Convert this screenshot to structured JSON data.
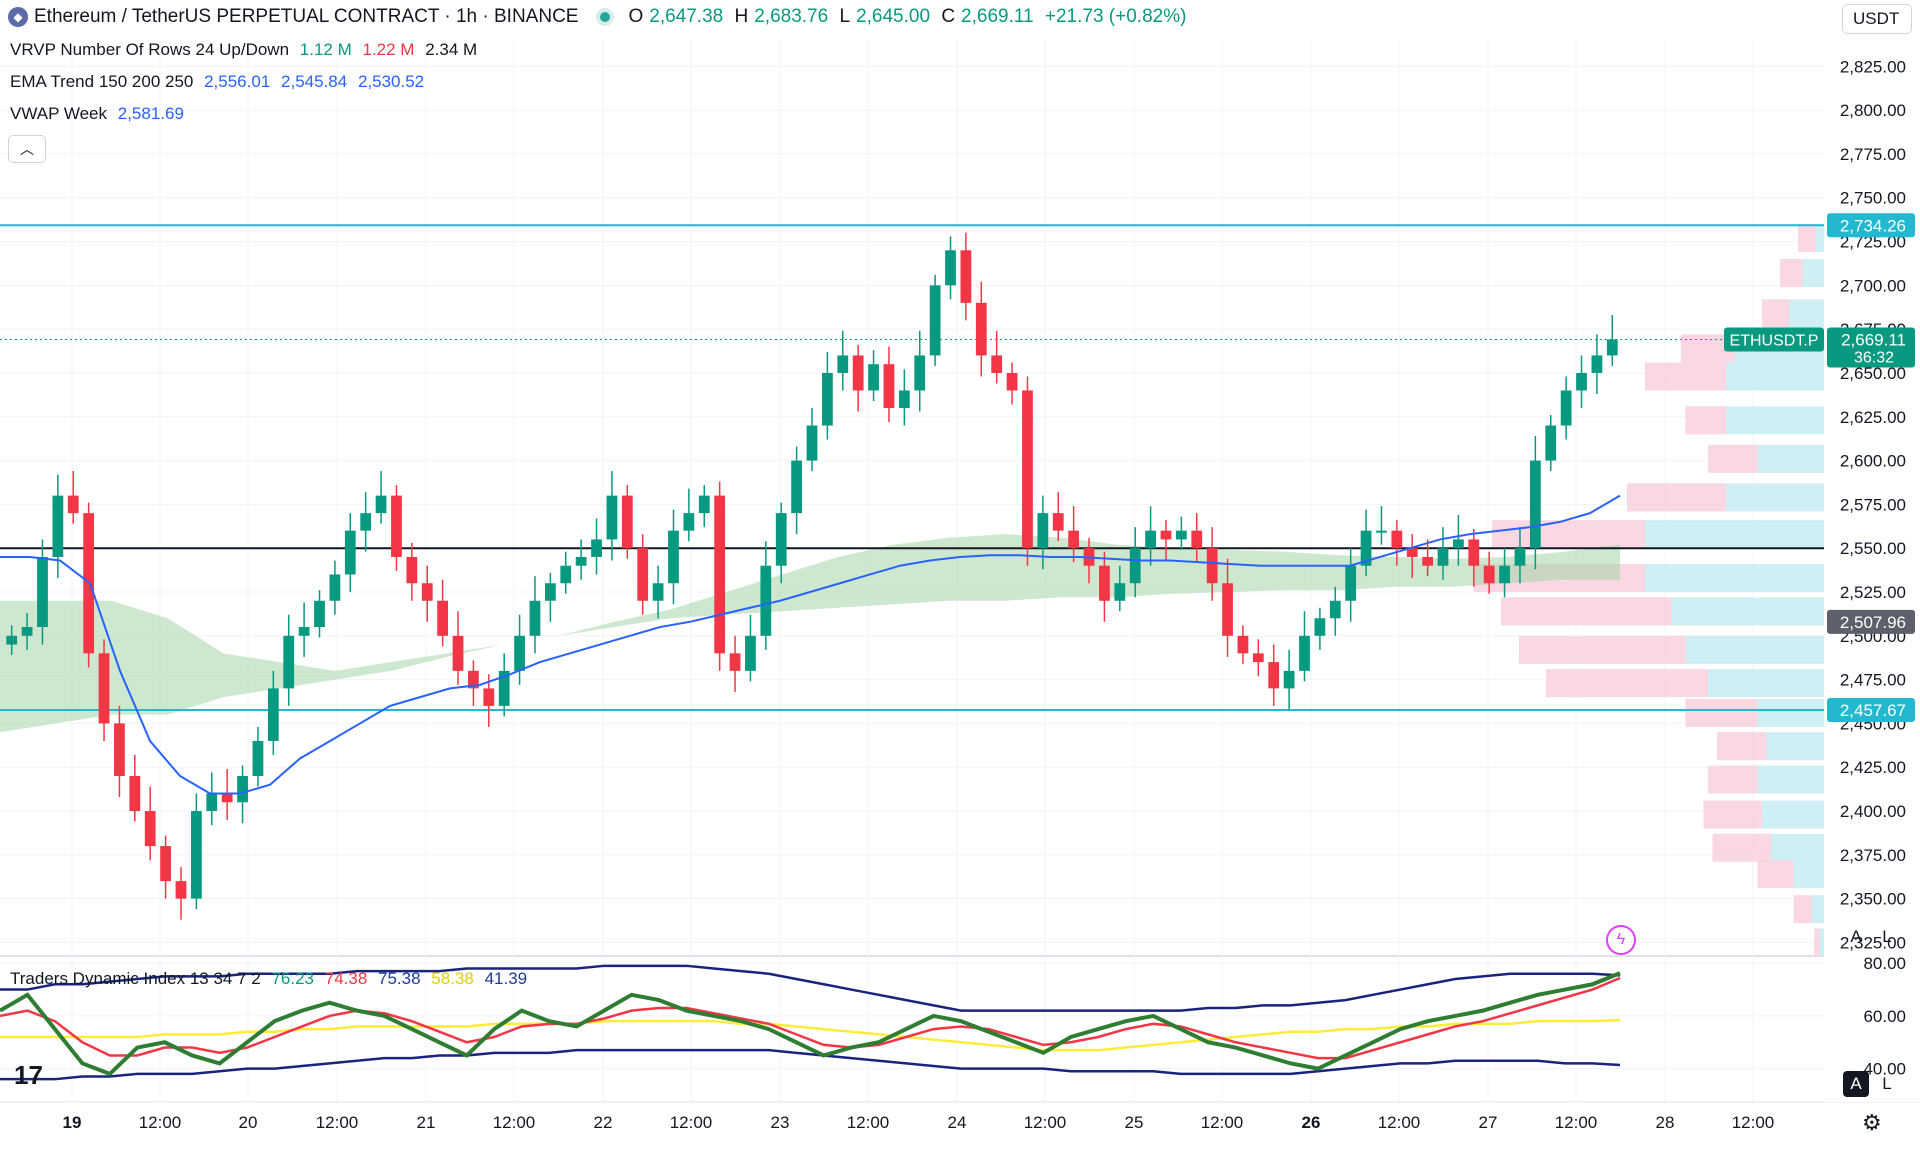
{
  "header": {
    "symbol_title": "Ethereum / TetherUS PERPETUAL CONTRACT · 1h · BINANCE",
    "o_label": "O",
    "o_value": "2,647.38",
    "h_label": "H",
    "h_value": "2,683.76",
    "l_label": "L",
    "l_value": "2,645.00",
    "c_label": "C",
    "c_value": "2,669.11",
    "change": "+21.73 (+0.82%)"
  },
  "currency_button": "USDT",
  "indicators": {
    "vrvp": {
      "name": "VRVP Number Of Rows 24 Up/Down",
      "up": "1.12 M",
      "down": "1.22 M",
      "total": "2.34 M"
    },
    "ema": {
      "name": "EMA Trend 150 200 250",
      "v1": "2,556.01",
      "v2": "2,545.84",
      "v3": "2,530.52"
    },
    "vwap": {
      "name": "VWAP Week",
      "value": "2,581.69"
    },
    "tdi": {
      "name": "Traders Dynamic Index 13 34 7 2",
      "v1": "76.23",
      "v2": "74.38",
      "v3": "75.38",
      "v4": "58.38",
      "v5": "41.39"
    }
  },
  "price_scale": {
    "ticks": [
      "2,825.00",
      "2,800.00",
      "2,775.00",
      "2,750.00",
      "2,725.00",
      "2,700.00",
      "2,675.00",
      "2,650.00",
      "2,625.00",
      "2,600.00",
      "2,575.00",
      "2,550.00",
      "2,525.00",
      "2,500.00",
      "2,475.00",
      "2,450.00",
      "2,425.00",
      "2,400.00",
      "2,375.00",
      "2,350.00",
      "2,325.00"
    ],
    "tick_values": [
      2825,
      2800,
      2775,
      2750,
      2725,
      2700,
      2675,
      2650,
      2625,
      2600,
      2575,
      2550,
      2525,
      2500,
      2475,
      2450,
      2425,
      2400,
      2375,
      2350,
      2325
    ],
    "labels": [
      {
        "text": "2,734.26",
        "value": 2734.26,
        "color": "#22b8cf"
      },
      {
        "text": "2,669.11",
        "sub": "36:32",
        "value": 2669.11,
        "color": "#089981"
      },
      {
        "text": "2,507.96",
        "value": 2507.96,
        "color": "#5d606b"
      },
      {
        "text": "2,457.67",
        "value": 2457.67,
        "color": "#22b8cf"
      }
    ],
    "symbol_tag": "ETHUSDT.P"
  },
  "osc_scale": {
    "ticks": [
      "80.00",
      "60.00",
      "40.00"
    ],
    "tick_values": [
      80,
      60,
      40
    ]
  },
  "time_axis": {
    "labels": [
      "19",
      "12:00",
      "20",
      "12:00",
      "21",
      "12:00",
      "22",
      "12:00",
      "23",
      "12:00",
      "24",
      "12:00",
      "25",
      "12:00",
      "26",
      "12:00",
      "27",
      "12:00",
      "28",
      "12:00"
    ],
    "bold": [
      true,
      false,
      false,
      false,
      false,
      false,
      false,
      false,
      false,
      false,
      false,
      false,
      false,
      false,
      true,
      false,
      false,
      false,
      false,
      false
    ]
  },
  "scale_buttons": {
    "a": "A",
    "l": "L"
  },
  "chart_data": {
    "type": "candlestick",
    "price_range": [
      2315,
      2840
    ],
    "horizontal_lines": [
      {
        "value": 2734.26,
        "color": "#22b8cf"
      },
      {
        "value": 2550.0,
        "color": "#131722"
      },
      {
        "value": 2457.67,
        "color": "#22b8cf"
      }
    ],
    "close_series": [
      2500,
      2505,
      2545,
      2580,
      2570,
      2490,
      2450,
      2420,
      2400,
      2380,
      2360,
      2350,
      2400,
      2410,
      2405,
      2420,
      2440,
      2470,
      2500,
      2505,
      2520,
      2535,
      2560,
      2570,
      2580,
      2545,
      2530,
      2520,
      2500,
      2480,
      2470,
      2460,
      2480,
      2500,
      2520,
      2530,
      2540,
      2545,
      2555,
      2580,
      2550,
      2520,
      2530,
      2560,
      2570,
      2580,
      2490,
      2480,
      2500,
      2540,
      2570,
      2600,
      2620,
      2650,
      2660,
      2640,
      2655,
      2630,
      2640,
      2660,
      2700,
      2720,
      2690,
      2660,
      2650,
      2640,
      2550,
      2570,
      2560,
      2550,
      2540,
      2520,
      2530,
      2550,
      2560,
      2555,
      2560,
      2550,
      2530,
      2500,
      2490,
      2485,
      2470,
      2480,
      2500,
      2510,
      2520,
      2540,
      2560,
      2560,
      2550,
      2545,
      2540,
      2550,
      2555,
      2540,
      2530,
      2540,
      2550,
      2600,
      2620,
      2640,
      2650,
      2660,
      2669.11
    ],
    "ema_series": [
      2545,
      2545,
      2543,
      2530,
      2480,
      2440,
      2420,
      2410,
      2410,
      2415,
      2430,
      2440,
      2450,
      2460,
      2465,
      2470,
      2472,
      2478,
      2485,
      2490,
      2495,
      2500,
      2505,
      2508,
      2512,
      2516,
      2520,
      2525,
      2530,
      2535,
      2540,
      2543,
      2545,
      2546,
      2546,
      2545,
      2545,
      2544,
      2543,
      2543,
      2542,
      2541,
      2540,
      2540,
      2540,
      2540,
      2545,
      2550,
      2555,
      2558,
      2560,
      2562,
      2565,
      2570,
      2580
    ],
    "ema_band_top": [
      2520,
      2520,
      2520,
      2510,
      2490,
      2485,
      2480,
      2485,
      2490,
      2495,
      2500,
      2508,
      2515,
      2525,
      2535,
      2545,
      2552,
      2556,
      2558,
      2556,
      2552,
      2550,
      2549,
      2548,
      2546,
      2545,
      2544,
      2545,
      2548,
      2552
    ],
    "ema_band_bottom": [
      2445,
      2450,
      2455,
      2455,
      2465,
      2470,
      2475,
      2480,
      2488,
      2495,
      2500,
      2505,
      2510,
      2512,
      2514,
      2516,
      2518,
      2520,
      2520,
      2522,
      2522,
      2524,
      2525,
      2526,
      2526,
      2528,
      2528,
      2530,
      2532,
      2532
    ],
    "volume_profile_rows": [
      {
        "price": 2727,
        "down": 20,
        "up": 10
      },
      {
        "price": 2707,
        "down": 25,
        "up": 25
      },
      {
        "price": 2684,
        "down": 30,
        "up": 40
      },
      {
        "price": 2664,
        "down": 60,
        "up": 100
      },
      {
        "price": 2648,
        "down": 90,
        "up": 110
      },
      {
        "price": 2623,
        "down": 45,
        "up": 110
      },
      {
        "price": 2601,
        "down": 55,
        "up": 75
      },
      {
        "price": 2579,
        "down": 110,
        "up": 110
      },
      {
        "price": 2558,
        "down": 170,
        "up": 200
      },
      {
        "price": 2533,
        "down": 190,
        "up": 200
      },
      {
        "price": 2514,
        "down": 190,
        "up": 170
      },
      {
        "price": 2492,
        "down": 185,
        "up": 155
      },
      {
        "price": 2473,
        "down": 180,
        "up": 130
      },
      {
        "price": 2456,
        "down": 80,
        "up": 75
      },
      {
        "price": 2437,
        "down": 55,
        "up": 65
      },
      {
        "price": 2418,
        "down": 55,
        "up": 75
      },
      {
        "price": 2398,
        "down": 65,
        "up": 70
      },
      {
        "price": 2379,
        "down": 65,
        "up": 60
      },
      {
        "price": 2364,
        "down": 40,
        "up": 35
      },
      {
        "price": 2344,
        "down": 20,
        "up": 15
      },
      {
        "price": 2325,
        "down": 6,
        "up": 6
      }
    ],
    "tdi": {
      "range": [
        30,
        85
      ],
      "green": [
        62,
        68,
        55,
        42,
        38,
        48,
        50,
        45,
        42,
        50,
        58,
        62,
        65,
        62,
        60,
        55,
        50,
        45,
        55,
        62,
        58,
        56,
        62,
        68,
        66,
        62,
        60,
        58,
        55,
        50,
        45,
        48,
        50,
        55,
        60,
        58,
        54,
        50,
        46,
        52,
        55,
        58,
        60,
        55,
        50,
        48,
        45,
        42,
        40,
        45,
        50,
        55,
        58,
        60,
        62,
        65,
        68,
        70,
        72,
        76.23
      ],
      "red": [
        60,
        62,
        58,
        50,
        45,
        45,
        48,
        48,
        46,
        48,
        52,
        56,
        60,
        62,
        61,
        58,
        54,
        50,
        52,
        56,
        57,
        57,
        59,
        62,
        63,
        63,
        61,
        59,
        57,
        53,
        49,
        48,
        49,
        52,
        55,
        56,
        55,
        52,
        49,
        50,
        52,
        55,
        57,
        56,
        53,
        50,
        48,
        46,
        44,
        44,
        47,
        50,
        53,
        56,
        58,
        61,
        64,
        67,
        70,
        74.38
      ],
      "yellow": [
        52,
        52,
        52,
        52,
        52,
        52,
        53,
        53,
        53,
        54,
        54,
        55,
        55,
        56,
        56,
        56,
        56,
        56,
        57,
        57,
        57,
        57,
        58,
        58,
        58,
        58,
        58,
        57,
        57,
        56,
        55,
        54,
        53,
        52,
        51,
        50,
        49,
        48,
        47,
        47,
        47,
        48,
        49,
        50,
        51,
        52,
        53,
        54,
        54,
        55,
        55,
        56,
        56,
        57,
        57,
        57,
        58,
        58,
        58,
        58.38
      ],
      "blue_upper": [
        70,
        70,
        72,
        72,
        73,
        74,
        75,
        75,
        75,
        76,
        76,
        76,
        76,
        77,
        77,
        77,
        77,
        78,
        78,
        78,
        78,
        78,
        79,
        79,
        79,
        79,
        78,
        77,
        76,
        74,
        72,
        70,
        68,
        66,
        64,
        62,
        62,
        62,
        62,
        62,
        62,
        62,
        62,
        62,
        63,
        63,
        64,
        64,
        65,
        66,
        68,
        70,
        72,
        74,
        75,
        76,
        76,
        76,
        76,
        75.38
      ],
      "blue_lower": [
        36,
        36,
        36,
        37,
        37,
        38,
        38,
        38,
        39,
        40,
        40,
        41,
        42,
        43,
        44,
        44,
        45,
        45,
        46,
        46,
        46,
        47,
        47,
        47,
        47,
        47,
        47,
        47,
        47,
        46,
        45,
        44,
        43,
        42,
        41,
        40,
        40,
        40,
        40,
        39,
        39,
        39,
        39,
        38,
        38,
        38,
        38,
        38,
        39,
        40,
        41,
        42,
        42,
        43,
        43,
        43,
        43,
        42,
        42,
        41.39
      ]
    }
  }
}
